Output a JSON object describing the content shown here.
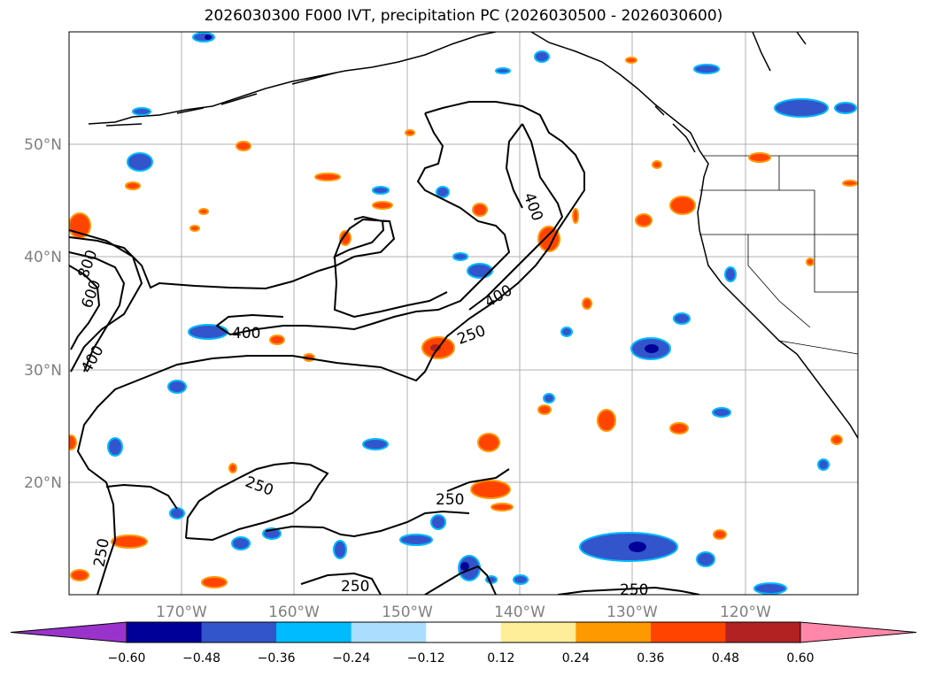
{
  "title": "2026030300 F000 IVT, precipitation PC (2026030500 - 2026030600)",
  "lat_ticks": [
    "50°N",
    "40°N",
    "30°N",
    "20°N"
  ],
  "lon_ticks": [
    "170°W",
    "160°W",
    "150°W",
    "140°W",
    "130°W",
    "120°W"
  ],
  "contour_labels": [
    "400",
    "400",
    "600",
    "800",
    "400",
    "400",
    "250",
    "250",
    "250",
    "250",
    "250",
    "250"
  ],
  "colorbar": {
    "labels": [
      "−0.60",
      "−0.48",
      "−0.36",
      "−0.24",
      "−0.12",
      "0.12",
      "0.24",
      "0.36",
      "0.48",
      "0.60"
    ],
    "colors": [
      "#9933cc",
      "#000099",
      "#3355cc",
      "#00bbff",
      "#aaddff",
      "#ffffff",
      "#ffee99",
      "#ff9900",
      "#ff4400",
      "#b22222",
      "#ff88aa"
    ],
    "under_color": "#9933cc",
    "over_color": "#ff88aa"
  }
}
